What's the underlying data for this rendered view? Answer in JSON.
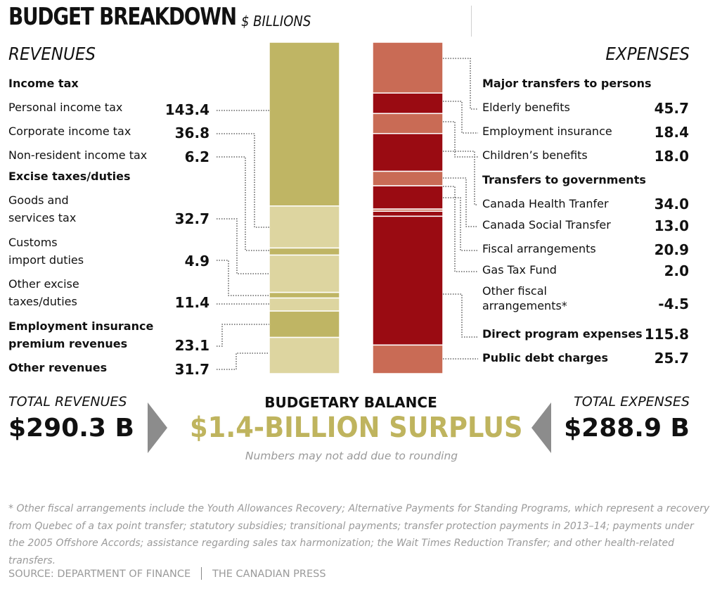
{
  "header": {
    "title": "BUDGET BREAKDOWN",
    "unit": "$ BILLIONS"
  },
  "revenues": {
    "heading": "REVENUES",
    "income_tax_heading": "Income tax",
    "excise_heading": "Excise taxes/duties",
    "items": [
      {
        "label": "Personal income tax",
        "value": "143.4"
      },
      {
        "label": "Corporate income tax",
        "value": "36.8"
      },
      {
        "label": "Non-resident income tax",
        "value": "6.2"
      },
      {
        "label_line1": "Goods and",
        "label_line2": "services tax",
        "value": "32.7"
      },
      {
        "label_line1": "Customs",
        "label_line2": "import duties",
        "value": "4.9"
      },
      {
        "label_line1": "Other excise",
        "label_line2": "taxes/duties",
        "value": "11.4"
      },
      {
        "label_line1": "Employment insurance",
        "label_line2": "premium revenues",
        "value": "23.1"
      },
      {
        "label": "Other revenues",
        "value": "31.7"
      }
    ],
    "total_label": "TOTAL REVENUES",
    "total_value": "$290.3 B"
  },
  "expenses": {
    "heading": "EXPENSES",
    "persons_heading": "Major transfers to persons",
    "governments_heading": "Transfers to governments",
    "items": [
      {
        "label": "Elderly benefits",
        "value": "45.7"
      },
      {
        "label": "Employment insurance",
        "value": "18.4"
      },
      {
        "label": "Children’s benefits",
        "value": "18.0"
      },
      {
        "label": "Canada Health Tranfer",
        "value": "34.0"
      },
      {
        "label": "Canada Social Transfer",
        "value": "13.0"
      },
      {
        "label": "Fiscal arrangements",
        "value": "20.9"
      },
      {
        "label": "Gas Tax Fund",
        "value": "2.0"
      },
      {
        "label_line1": "Other fiscal",
        "label_line2": "arrangements*",
        "value": "-4.5"
      },
      {
        "label": "Direct program expenses",
        "value": "115.8"
      },
      {
        "label": "Public debt charges",
        "value": "25.7"
      }
    ],
    "total_label": "TOTAL EXPENSES",
    "total_value": "$288.9 B"
  },
  "balance": {
    "label": "BUDGETARY BALANCE",
    "value": "$1.4-BILLION SURPLUS",
    "note": "Numbers may not add due to rounding"
  },
  "footnote": "* Other fiscal arrangements include the Youth Allowances Recovery; Alternative Payments for Standing Programs, which represent a recovery from Quebec of a tax point transfer; statutory subsidies; transitional payments; transfer protection payments in 2013–14; payments under the 2005 Offshore Accords; assistance regarding sales tax harmonization; the Wait Times Reduction Transfer; and other health-related transfers.",
  "source": {
    "left": "SOURCE: DEPARTMENT OF FINANCE",
    "right": "THE CANADIAN PRESS"
  },
  "colors": {
    "revenue_dark": "#bfb564",
    "revenue_light": "#ddd5a0",
    "expense_salmon": "#c96b55",
    "expense_dark": "#9a0b12",
    "surplus": "#bfb45e",
    "connector": "#444444"
  },
  "chart_data": {
    "type": "bar",
    "stacked": true,
    "unit": "$ billions",
    "series": [
      {
        "group": "REVENUES",
        "categories": [
          "Personal income tax",
          "Corporate income tax",
          "Non-resident income tax",
          "Goods and services tax",
          "Customs import duties",
          "Other excise taxes/duties",
          "Employment insurance premium revenues",
          "Other revenues"
        ],
        "values": [
          143.4,
          36.8,
          6.2,
          32.7,
          4.9,
          11.4,
          23.1,
          31.7
        ],
        "total": 290.3
      },
      {
        "group": "EXPENSES",
        "categories": [
          "Elderly benefits",
          "Employment insurance",
          "Children’s benefits",
          "Canada Health Tranfer",
          "Canada Social Transfer",
          "Fiscal arrangements",
          "Gas Tax Fund",
          "Other fiscal arrangements*",
          "Direct program expenses",
          "Public debt charges"
        ],
        "values": [
          45.7,
          18.4,
          18.0,
          34.0,
          13.0,
          20.9,
          2.0,
          -4.5,
          115.8,
          25.7
        ],
        "total": 288.9
      }
    ]
  }
}
